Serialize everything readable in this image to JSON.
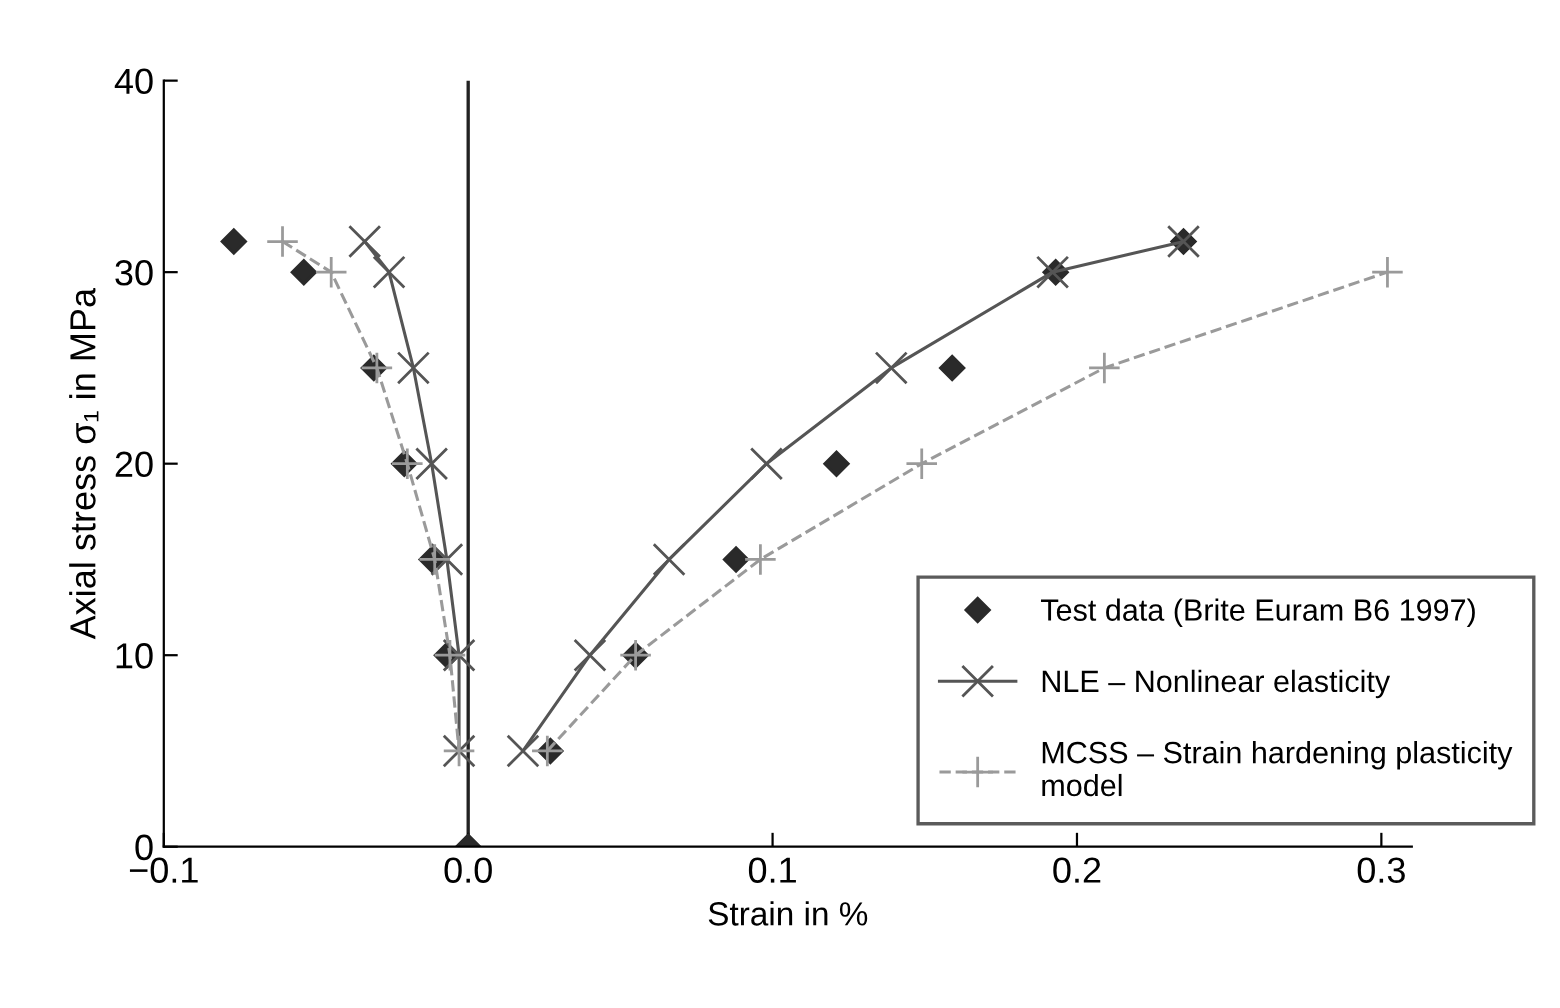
{
  "chart_data": {
    "type": "line",
    "xlabel": "Strain in %",
    "ylabel": "Axial stress σ₁ in MPa",
    "xlim": [
      -0.1,
      0.31
    ],
    "xticks": [
      {
        "value": -0.1,
        "label": "−0.1"
      },
      {
        "value": 0.0,
        "label": "0.0"
      },
      {
        "value": 0.1,
        "label": "0.1"
      },
      {
        "value": 0.2,
        "label": "0.2"
      },
      {
        "value": 0.3,
        "label": "0.3"
      }
    ],
    "ylim": [
      0,
      40
    ],
    "yticks": [
      0,
      10,
      20,
      30,
      40
    ],
    "grid": false,
    "legend": "bottom right",
    "ref_lines": [
      {
        "axis": "x",
        "value": 0,
        "color": "#222222"
      }
    ],
    "series": [
      {
        "name": "Test data (Brite Euram B6 1997)",
        "type": "scatter",
        "marker": "diamond",
        "color": "#2a2a2a",
        "x": [
          -0.077,
          -0.054,
          -0.031,
          -0.021,
          -0.012,
          -0.007,
          0.0,
          0.027,
          0.055,
          0.088,
          0.121,
          0.159,
          0.193,
          0.235
        ],
        "values": [
          31.6,
          30,
          25,
          20,
          15,
          10,
          0,
          5,
          10,
          15,
          20,
          25,
          30,
          31.6
        ]
      },
      {
        "name": "NLE – Nonlinear elasticity",
        "marker": "cross",
        "line_style": "solid",
        "color": "#555555",
        "x": [
          -0.034,
          -0.026,
          -0.018,
          -0.012,
          -0.007,
          -0.003,
          -0.003,
          0.0,
          0.018,
          0.04,
          0.066,
          0.098,
          0.139,
          0.192,
          0.235
        ],
        "values": [
          31.6,
          30,
          25,
          20,
          15,
          10,
          5,
          null,
          5,
          10,
          15,
          20,
          25,
          30,
          31.6
        ]
      },
      {
        "name": "MCSS – Strain hardening plasticity\nmodel",
        "marker": "plus",
        "line_style": "dashed",
        "color": "#9a9a9a",
        "x": [
          -0.061,
          -0.045,
          -0.03,
          -0.02,
          -0.011,
          -0.006,
          -0.003,
          0.0,
          0.026,
          0.055,
          0.096,
          0.149,
          0.209,
          0.302
        ],
        "values": [
          31.6,
          30,
          25,
          20,
          15,
          10,
          5,
          null,
          5,
          10,
          15,
          20,
          25,
          30
        ]
      }
    ]
  }
}
